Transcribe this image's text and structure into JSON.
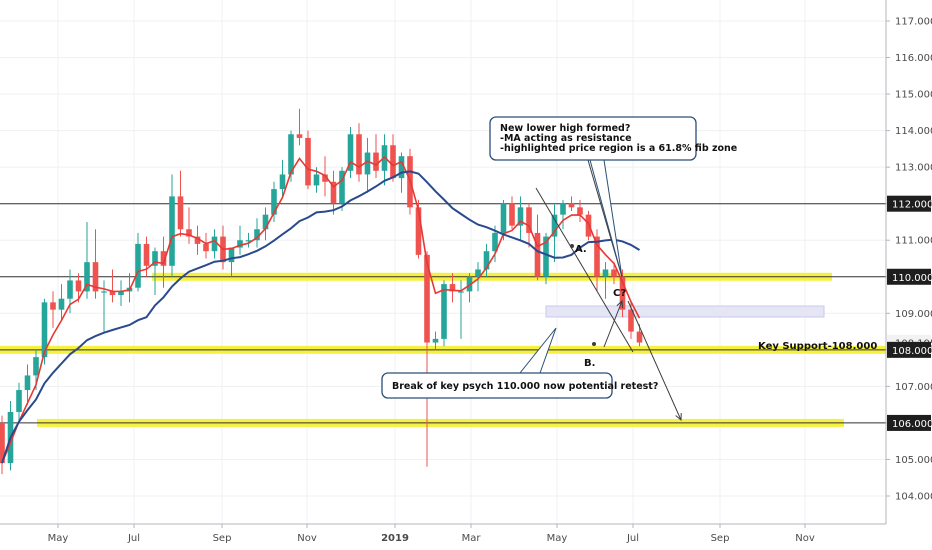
{
  "chart_data": {
    "type": "candlestick",
    "y_ticks": [
      "104.000",
      "105.000",
      "106.000",
      "107.000",
      "108.000",
      "109.000",
      "110.000",
      "111.000",
      "112.000",
      "113.000",
      "114.000",
      "115.000",
      "116.000",
      "117.000"
    ],
    "x_ticks": [
      "May",
      "Jul",
      "Sep",
      "Nov",
      "2019",
      "Mar",
      "May",
      "Jul",
      "Sep",
      "Nov"
    ],
    "ylim": [
      103.2,
      117.6
    ],
    "grid": true,
    "price_tags": {
      "last": "108.195",
      "levels": [
        "112.000",
        "110.000",
        "108.000",
        "106.000"
      ]
    },
    "horizontal_lines": [
      112.0,
      110.0,
      108.0,
      106.0
    ],
    "support_label": "Key Support-108.000",
    "annotations": {
      "top_note": [
        "New lower high formed?",
        "-MA acting as resistance",
        "-highlighted  price region is a 61.8% fib zone"
      ],
      "bottom_note": "Break of key psych 110.000 now potential retest?",
      "point_a": "A.",
      "point_b": "B.",
      "point_c": "C?"
    },
    "fib_zone": [
      108.9,
      109.2
    ],
    "candles": [
      {
        "o": 106.0,
        "h": 106.2,
        "l": 104.6,
        "c": 104.9
      },
      {
        "o": 104.9,
        "h": 106.6,
        "l": 104.7,
        "c": 106.3
      },
      {
        "o": 106.3,
        "h": 107.1,
        "l": 106.0,
        "c": 106.9
      },
      {
        "o": 106.9,
        "h": 107.6,
        "l": 106.5,
        "c": 107.3
      },
      {
        "o": 107.3,
        "h": 108.0,
        "l": 106.9,
        "c": 107.8
      },
      {
        "o": 107.8,
        "h": 109.4,
        "l": 107.6,
        "c": 109.3
      },
      {
        "o": 109.3,
        "h": 109.6,
        "l": 108.6,
        "c": 109.1
      },
      {
        "o": 109.1,
        "h": 109.8,
        "l": 108.8,
        "c": 109.4
      },
      {
        "o": 109.4,
        "h": 110.2,
        "l": 109.0,
        "c": 109.9
      },
      {
        "o": 109.9,
        "h": 110.1,
        "l": 109.3,
        "c": 109.6
      },
      {
        "o": 109.6,
        "h": 111.5,
        "l": 109.4,
        "c": 110.4
      },
      {
        "o": 110.4,
        "h": 111.3,
        "l": 109.4,
        "c": 109.6
      },
      {
        "o": 109.6,
        "h": 109.9,
        "l": 108.5,
        "c": 109.6
      },
      {
        "o": 109.6,
        "h": 110.2,
        "l": 109.3,
        "c": 109.5
      },
      {
        "o": 109.5,
        "h": 109.9,
        "l": 109.2,
        "c": 109.6
      },
      {
        "o": 109.6,
        "h": 110.1,
        "l": 109.3,
        "c": 109.7
      },
      {
        "o": 109.7,
        "h": 111.2,
        "l": 109.6,
        "c": 110.9
      },
      {
        "o": 110.9,
        "h": 111.1,
        "l": 110.0,
        "c": 110.3
      },
      {
        "o": 110.3,
        "h": 110.8,
        "l": 109.5,
        "c": 110.7
      },
      {
        "o": 110.7,
        "h": 111.1,
        "l": 109.7,
        "c": 110.3
      },
      {
        "o": 110.3,
        "h": 112.8,
        "l": 110.0,
        "c": 112.2
      },
      {
        "o": 112.2,
        "h": 112.9,
        "l": 111.1,
        "c": 111.3
      },
      {
        "o": 111.3,
        "h": 111.9,
        "l": 110.9,
        "c": 111.1
      },
      {
        "o": 111.1,
        "h": 111.4,
        "l": 110.6,
        "c": 110.9
      },
      {
        "o": 110.9,
        "h": 111.2,
        "l": 110.5,
        "c": 110.7
      },
      {
        "o": 110.7,
        "h": 111.3,
        "l": 110.5,
        "c": 111.1
      },
      {
        "o": 111.1,
        "h": 111.4,
        "l": 110.2,
        "c": 110.4
      },
      {
        "o": 110.4,
        "h": 110.8,
        "l": 110.0,
        "c": 110.8
      },
      {
        "o": 110.8,
        "h": 111.4,
        "l": 110.6,
        "c": 111.0
      },
      {
        "o": 111.0,
        "h": 111.2,
        "l": 110.8,
        "c": 111.0
      },
      {
        "o": 111.0,
        "h": 111.6,
        "l": 110.8,
        "c": 111.3
      },
      {
        "o": 111.3,
        "h": 111.9,
        "l": 111.0,
        "c": 111.7
      },
      {
        "o": 111.7,
        "h": 112.6,
        "l": 111.5,
        "c": 112.4
      },
      {
        "o": 112.4,
        "h": 113.2,
        "l": 112.2,
        "c": 112.8
      },
      {
        "o": 112.8,
        "h": 114.0,
        "l": 112.6,
        "c": 113.9
      },
      {
        "o": 113.9,
        "h": 114.6,
        "l": 113.6,
        "c": 113.8
      },
      {
        "o": 113.8,
        "h": 114.0,
        "l": 112.4,
        "c": 112.5
      },
      {
        "o": 112.5,
        "h": 113.0,
        "l": 112.3,
        "c": 112.8
      },
      {
        "o": 112.8,
        "h": 113.3,
        "l": 112.2,
        "c": 112.6
      },
      {
        "o": 112.6,
        "h": 112.9,
        "l": 111.7,
        "c": 112.0
      },
      {
        "o": 112.0,
        "h": 113.0,
        "l": 111.8,
        "c": 112.9
      },
      {
        "o": 112.9,
        "h": 114.1,
        "l": 112.7,
        "c": 113.9
      },
      {
        "o": 113.9,
        "h": 114.2,
        "l": 112.6,
        "c": 112.8
      },
      {
        "o": 112.8,
        "h": 113.8,
        "l": 112.3,
        "c": 113.4
      },
      {
        "o": 113.4,
        "h": 113.9,
        "l": 112.7,
        "c": 112.9
      },
      {
        "o": 112.9,
        "h": 113.9,
        "l": 112.5,
        "c": 113.6
      },
      {
        "o": 113.6,
        "h": 113.9,
        "l": 112.6,
        "c": 112.7
      },
      {
        "o": 112.7,
        "h": 113.4,
        "l": 112.3,
        "c": 113.3
      },
      {
        "o": 113.3,
        "h": 113.5,
        "l": 111.7,
        "c": 111.9
      },
      {
        "o": 111.9,
        "h": 112.1,
        "l": 110.5,
        "c": 110.6
      },
      {
        "o": 110.6,
        "h": 110.7,
        "l": 104.8,
        "c": 108.2
      },
      {
        "o": 108.2,
        "h": 108.5,
        "l": 108.0,
        "c": 108.3
      },
      {
        "o": 108.3,
        "h": 109.9,
        "l": 108.1,
        "c": 109.8
      },
      {
        "o": 109.8,
        "h": 110.1,
        "l": 109.3,
        "c": 109.6
      },
      {
        "o": 109.6,
        "h": 109.9,
        "l": 108.3,
        "c": 109.6
      },
      {
        "o": 109.6,
        "h": 110.1,
        "l": 109.3,
        "c": 110.0
      },
      {
        "o": 110.0,
        "h": 110.4,
        "l": 109.6,
        "c": 110.2
      },
      {
        "o": 110.2,
        "h": 110.9,
        "l": 110.0,
        "c": 110.7
      },
      {
        "o": 110.7,
        "h": 111.4,
        "l": 110.4,
        "c": 111.2
      },
      {
        "o": 111.2,
        "h": 112.1,
        "l": 111.0,
        "c": 112.0
      },
      {
        "o": 112.0,
        "h": 112.2,
        "l": 111.3,
        "c": 111.4
      },
      {
        "o": 111.4,
        "h": 112.2,
        "l": 111.0,
        "c": 111.9
      },
      {
        "o": 111.9,
        "h": 112.0,
        "l": 110.8,
        "c": 111.2
      },
      {
        "o": 111.2,
        "h": 111.7,
        "l": 109.9,
        "c": 110.0
      },
      {
        "o": 110.0,
        "h": 111.2,
        "l": 109.8,
        "c": 111.1
      },
      {
        "o": 111.1,
        "h": 112.0,
        "l": 110.4,
        "c": 111.7
      },
      {
        "o": 111.7,
        "h": 112.1,
        "l": 111.3,
        "c": 112.0
      },
      {
        "o": 112.0,
        "h": 112.2,
        "l": 111.8,
        "c": 111.9
      },
      {
        "o": 111.9,
        "h": 112.1,
        "l": 111.5,
        "c": 111.7
      },
      {
        "o": 111.7,
        "h": 111.8,
        "l": 111.0,
        "c": 111.1
      },
      {
        "o": 111.1,
        "h": 111.3,
        "l": 109.6,
        "c": 110.0
      },
      {
        "o": 110.0,
        "h": 110.4,
        "l": 109.4,
        "c": 110.2
      },
      {
        "o": 110.2,
        "h": 110.4,
        "l": 109.8,
        "c": 110.0
      },
      {
        "o": 110.0,
        "h": 110.2,
        "l": 108.9,
        "c": 109.1
      },
      {
        "o": 109.1,
        "h": 109.3,
        "l": 108.3,
        "c": 108.5
      },
      {
        "o": 108.5,
        "h": 108.7,
        "l": 108.1,
        "c": 108.2
      }
    ]
  }
}
